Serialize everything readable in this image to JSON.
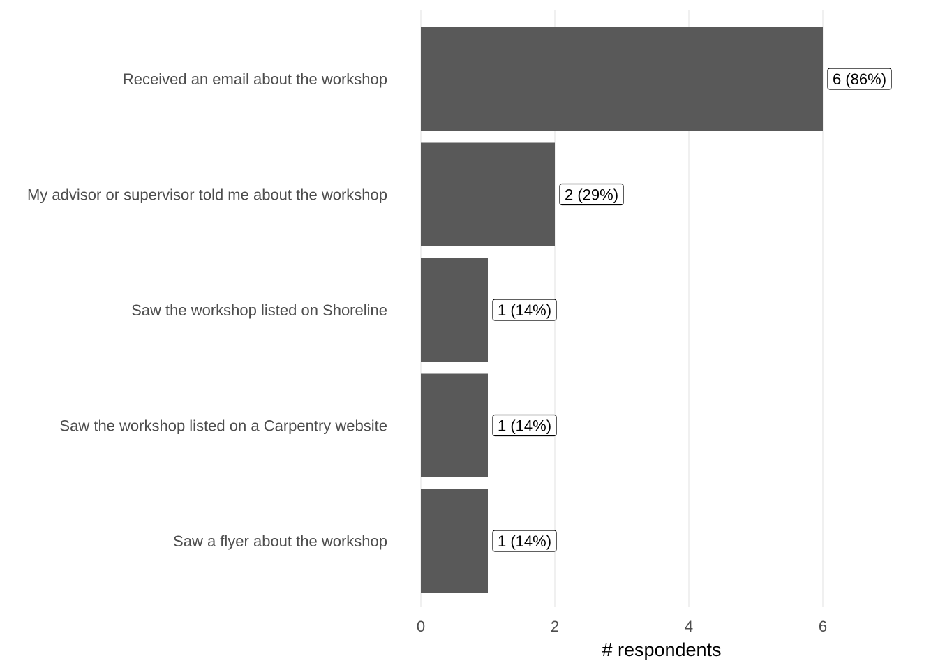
{
  "chart_data": {
    "type": "bar",
    "orientation": "horizontal",
    "categories": [
      "Received an email about the workshop",
      "My advisor or supervisor told me about the workshop",
      "Saw the workshop listed on Shoreline",
      "Saw the workshop listed on a Carpentry website",
      "Saw a flyer about the workshop"
    ],
    "values": [
      6,
      2,
      1,
      1,
      1
    ],
    "data_labels": [
      "6 (86%)",
      "2 (29%)",
      "1 (14%)",
      "1 (14%)",
      "1 (14%)"
    ],
    "xlabel": "# respondents",
    "ylabel": "",
    "xlim": [
      0,
      6
    ],
    "xticks": [
      0,
      2,
      4,
      6
    ],
    "xtick_labels": [
      "0",
      "2",
      "4",
      "6"
    ],
    "grid": "vertical",
    "bar_color": "#595959",
    "legend": "none"
  }
}
